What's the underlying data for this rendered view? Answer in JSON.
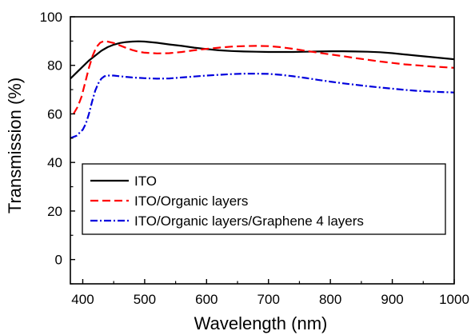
{
  "chart_data": {
    "type": "line",
    "title": "",
    "xlabel": "Wavelength (nm)",
    "ylabel": "Transmission (%)",
    "xlim": [
      380,
      1000
    ],
    "ylim": [
      -10,
      100
    ],
    "x_ticks": [
      400,
      500,
      600,
      700,
      800,
      900,
      1000
    ],
    "y_ticks": [
      0,
      20,
      40,
      60,
      80,
      100
    ],
    "x_tick_labels": [
      "400",
      "500",
      "600",
      "700",
      "800",
      "900",
      "1000"
    ],
    "y_tick_labels": [
      "0",
      "20",
      "40",
      "60",
      "80",
      "100"
    ],
    "grid": false,
    "legend_position": "bottom-left",
    "series": [
      {
        "name": "ITO",
        "color": "#000000",
        "dash": "solid",
        "points": [
          [
            380,
            74.5
          ],
          [
            390,
            77
          ],
          [
            400,
            79.5
          ],
          [
            410,
            82
          ],
          [
            420,
            84
          ],
          [
            430,
            86
          ],
          [
            440,
            87.5
          ],
          [
            450,
            88.5
          ],
          [
            460,
            89.2
          ],
          [
            470,
            89.6
          ],
          [
            480,
            89.8
          ],
          [
            490,
            89.9
          ],
          [
            500,
            89.8
          ],
          [
            520,
            89.3
          ],
          [
            540,
            88.6
          ],
          [
            560,
            88
          ],
          [
            580,
            87.3
          ],
          [
            600,
            86.7
          ],
          [
            620,
            86.2
          ],
          [
            640,
            85.9
          ],
          [
            660,
            85.7
          ],
          [
            680,
            85.6
          ],
          [
            700,
            85.5
          ],
          [
            720,
            85.5
          ],
          [
            740,
            85.5
          ],
          [
            760,
            85.6
          ],
          [
            780,
            85.7
          ],
          [
            800,
            85.8
          ],
          [
            820,
            85.8
          ],
          [
            840,
            85.7
          ],
          [
            860,
            85.6
          ],
          [
            880,
            85.4
          ],
          [
            900,
            85
          ],
          [
            920,
            84.5
          ],
          [
            940,
            84
          ],
          [
            960,
            83.5
          ],
          [
            980,
            83
          ],
          [
            1000,
            82.5
          ]
        ]
      },
      {
        "name": "ITO/Organic layers",
        "color": "#ff0000",
        "dash": "dashed",
        "points": [
          [
            385,
            60
          ],
          [
            392,
            63
          ],
          [
            398,
            67
          ],
          [
            404,
            73
          ],
          [
            410,
            79
          ],
          [
            416,
            84
          ],
          [
            422,
            87.5
          ],
          [
            428,
            89.3
          ],
          [
            434,
            90
          ],
          [
            440,
            89.8
          ],
          [
            450,
            89.2
          ],
          [
            460,
            88.2
          ],
          [
            470,
            87.2
          ],
          [
            480,
            86.3
          ],
          [
            490,
            85.6
          ],
          [
            500,
            85.2
          ],
          [
            520,
            84.9
          ],
          [
            540,
            85
          ],
          [
            560,
            85.5
          ],
          [
            580,
            86.2
          ],
          [
            600,
            86.8
          ],
          [
            620,
            87.3
          ],
          [
            640,
            87.7
          ],
          [
            660,
            87.9
          ],
          [
            680,
            88
          ],
          [
            700,
            87.9
          ],
          [
            720,
            87.5
          ],
          [
            740,
            86.8
          ],
          [
            760,
            86
          ],
          [
            780,
            85.2
          ],
          [
            800,
            84.5
          ],
          [
            820,
            83.8
          ],
          [
            840,
            83
          ],
          [
            860,
            82.3
          ],
          [
            880,
            81.6
          ],
          [
            900,
            81
          ],
          [
            920,
            80.4
          ],
          [
            940,
            80
          ],
          [
            960,
            79.6
          ],
          [
            980,
            79.3
          ],
          [
            1000,
            79
          ]
        ]
      },
      {
        "name": "ITO/Organic layers/Graphene 4 layers",
        "color": "#0000dd",
        "dash": "dashdot",
        "points": [
          [
            380,
            50
          ],
          [
            390,
            51
          ],
          [
            400,
            53.5
          ],
          [
            405,
            56
          ],
          [
            410,
            60
          ],
          [
            415,
            65
          ],
          [
            420,
            69.5
          ],
          [
            425,
            72.5
          ],
          [
            430,
            74.5
          ],
          [
            435,
            75.5
          ],
          [
            440,
            75.8
          ],
          [
            450,
            75.8
          ],
          [
            460,
            75.5
          ],
          [
            480,
            75
          ],
          [
            500,
            74.7
          ],
          [
            520,
            74.5
          ],
          [
            540,
            74.6
          ],
          [
            560,
            75
          ],
          [
            580,
            75.4
          ],
          [
            600,
            75.8
          ],
          [
            620,
            76.1
          ],
          [
            640,
            76.4
          ],
          [
            660,
            76.6
          ],
          [
            680,
            76.6
          ],
          [
            700,
            76.5
          ],
          [
            720,
            76.1
          ],
          [
            740,
            75.5
          ],
          [
            760,
            74.8
          ],
          [
            780,
            74
          ],
          [
            800,
            73.3
          ],
          [
            820,
            72.6
          ],
          [
            840,
            72
          ],
          [
            860,
            71.4
          ],
          [
            880,
            70.9
          ],
          [
            900,
            70.4
          ],
          [
            920,
            69.9
          ],
          [
            940,
            69.5
          ],
          [
            960,
            69.2
          ],
          [
            980,
            69
          ],
          [
            1000,
            68.8
          ]
        ]
      }
    ]
  }
}
